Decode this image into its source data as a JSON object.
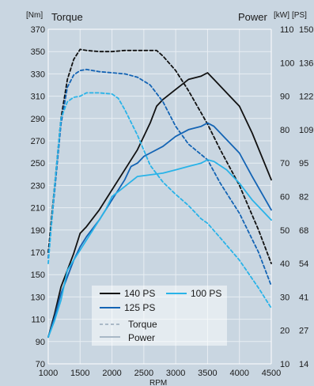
{
  "chart_data": {
    "type": "line",
    "title": "",
    "xlabel": "RPM",
    "left_unit": "[Nm]",
    "left_title": "Torque",
    "right_unit_kw": "[kW]",
    "right_unit_ps": "[PS]",
    "right_title": "Power",
    "xlim": [
      1000,
      4500
    ],
    "ylim_torque": [
      70,
      370
    ],
    "ylim_power_kw": [
      10,
      110
    ],
    "x_ticks": [
      "1000",
      "1500",
      "2000",
      "2500",
      "3000",
      "3500",
      "4000",
      "4500"
    ],
    "torque_ticks": [
      "70",
      "90",
      "110",
      "130",
      "150",
      "170",
      "190",
      "210",
      "230",
      "250",
      "270",
      "290",
      "310",
      "330",
      "350",
      "370"
    ],
    "kw_ticks": [
      "10",
      "20",
      "30",
      "40",
      "50",
      "60",
      "70",
      "80",
      "90",
      "100",
      "110"
    ],
    "ps_ticks": [
      "14",
      "27",
      "41",
      "54",
      "68",
      "82",
      "95",
      "109",
      "122",
      "136",
      "150"
    ],
    "grid": true,
    "colors": {
      "background": "#c9d6e1",
      "grid": "#e8eef3",
      "s140": "#111111",
      "s125": "#1464b4",
      "s100": "#29b3e8",
      "legend_box": "#ffffff",
      "legend_sample": "#a9b8c6"
    },
    "legend": {
      "placement": "bottom-center",
      "entries": [
        {
          "label": "140 PS",
          "color": "#111111"
        },
        {
          "label": "100 PS",
          "color": "#29b3e8"
        },
        {
          "label": "125 PS",
          "color": "#1464b4"
        }
      ],
      "style_entries": [
        {
          "label": "Torque",
          "dash": true
        },
        {
          "label": "Power",
          "dash": false
        }
      ]
    },
    "series": [
      {
        "variant": "140 PS",
        "quantity": "Torque",
        "axis": "torque",
        "color": "#111111",
        "dash": true,
        "x": [
          1000,
          1100,
          1200,
          1300,
          1400,
          1500,
          1600,
          1800,
          2000,
          2200,
          2400,
          2600,
          2700,
          2800,
          3000,
          3200,
          3500,
          3700,
          4000,
          4300,
          4500
        ],
        "y": [
          170,
          230,
          290,
          325,
          343,
          352,
          351,
          350,
          350,
          351,
          351,
          351,
          351,
          346,
          333,
          315,
          285,
          262,
          230,
          190,
          160
        ]
      },
      {
        "variant": "140 PS",
        "quantity": "Power",
        "axis": "power",
        "color": "#111111",
        "dash": false,
        "x": [
          1000,
          1100,
          1200,
          1300,
          1400,
          1500,
          1600,
          1800,
          2000,
          2200,
          2400,
          2600,
          2700,
          2800,
          3000,
          3200,
          3400,
          3500,
          3600,
          3800,
          4000,
          4200,
          4500
        ],
        "y": [
          18,
          25,
          33,
          38,
          43,
          49,
          51,
          56,
          62,
          68,
          74,
          82,
          87,
          89,
          92,
          95,
          96,
          97,
          95,
          91,
          87,
          79,
          65
        ]
      },
      {
        "variant": "125 PS",
        "quantity": "Torque",
        "axis": "torque",
        "color": "#1464b4",
        "dash": true,
        "x": [
          1000,
          1100,
          1200,
          1300,
          1400,
          1500,
          1600,
          1800,
          2000,
          2200,
          2400,
          2600,
          2800,
          3000,
          3200,
          3500,
          3700,
          4000,
          4300,
          4500
        ],
        "y": [
          165,
          225,
          285,
          318,
          329,
          333,
          334,
          332,
          331,
          330,
          327,
          320,
          305,
          283,
          267,
          253,
          232,
          205,
          170,
          140
        ]
      },
      {
        "variant": "125 PS",
        "quantity": "Power",
        "axis": "power",
        "color": "#1464b4",
        "dash": false,
        "x": [
          1000,
          1100,
          1200,
          1300,
          1400,
          1500,
          1600,
          1800,
          2000,
          2200,
          2300,
          2400,
          2500,
          2600,
          2800,
          3000,
          3200,
          3400,
          3500,
          3600,
          3800,
          4000,
          4200,
          4500
        ],
        "y": [
          18,
          24,
          31,
          36,
          41,
          45,
          48,
          53,
          59,
          65,
          69,
          70,
          72,
          73,
          75,
          78,
          80,
          81,
          82,
          81,
          77,
          73,
          66,
          56
        ]
      },
      {
        "variant": "100 PS",
        "quantity": "Torque",
        "axis": "torque",
        "color": "#29b3e8",
        "dash": true,
        "x": [
          1000,
          1100,
          1200,
          1300,
          1400,
          1500,
          1600,
          1800,
          2000,
          2100,
          2200,
          2400,
          2600,
          2800,
          3000,
          3200,
          3400,
          3500,
          3700,
          4000,
          4300,
          4500
        ],
        "y": [
          160,
          230,
          290,
          305,
          309,
          310,
          313,
          313,
          312,
          308,
          298,
          275,
          248,
          233,
          222,
          212,
          200,
          196,
          183,
          163,
          138,
          120
        ]
      },
      {
        "variant": "100 PS",
        "quantity": "Power",
        "axis": "power",
        "color": "#29b3e8",
        "dash": false,
        "x": [
          1000,
          1100,
          1200,
          1300,
          1400,
          1500,
          1600,
          1800,
          1900,
          2000,
          2200,
          2400,
          2800,
          3000,
          3200,
          3400,
          3500,
          3600,
          3800,
          4000,
          4200,
          4500
        ],
        "y": [
          18,
          23,
          29,
          38,
          41,
          44,
          47,
          53,
          56,
          60,
          63,
          66,
          67,
          68,
          69,
          70,
          71,
          70.5,
          68,
          64,
          59,
          53
        ]
      }
    ]
  }
}
